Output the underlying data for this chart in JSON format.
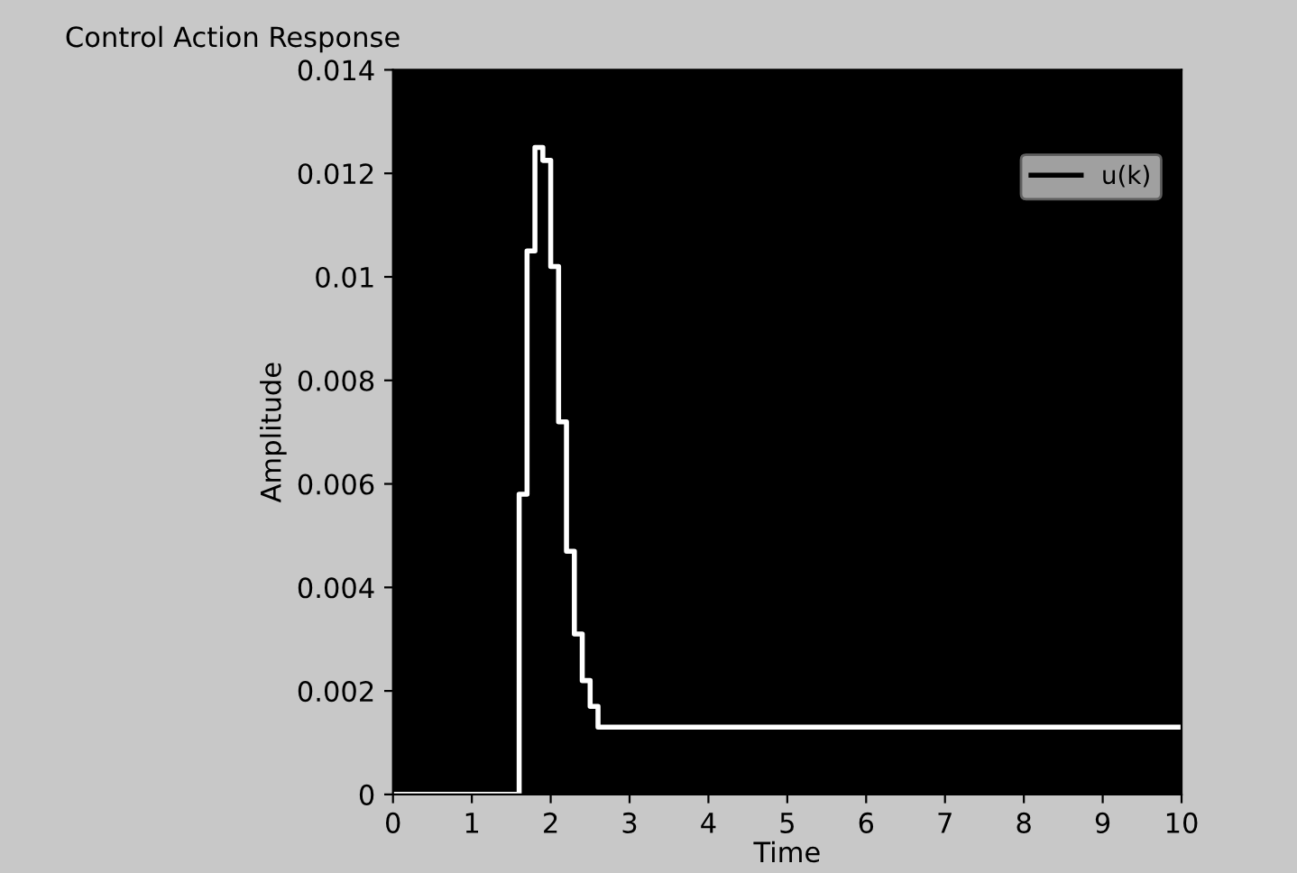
{
  "chart_data": {
    "type": "step",
    "title": "Control Action Response",
    "xlabel": "Time",
    "ylabel": "Amplitude",
    "series": [
      {
        "name": "u(k)",
        "color": "#ffffff",
        "x": [
          0,
          1.6,
          1.7,
          1.8,
          1.9,
          2.0,
          2.1,
          2.2,
          2.3,
          2.4,
          2.5,
          2.6,
          10
        ],
        "values": [
          0,
          0.0058,
          0.0105,
          0.0125,
          0.01225,
          0.0102,
          0.0072,
          0.0047,
          0.0031,
          0.0022,
          0.0017,
          0.0013,
          0.0013
        ]
      }
    ],
    "xlim": [
      0,
      10
    ],
    "xticks": [
      0,
      1,
      2,
      3,
      4,
      5,
      6,
      7,
      8,
      9,
      10
    ],
    "ylim": [
      0,
      0.014
    ],
    "yticks": [
      0,
      0.002,
      0.004,
      0.006,
      0.008,
      0.01,
      0.012,
      0.014
    ],
    "grid": false,
    "legend": "top right",
    "line_style": "solid",
    "marker": "none"
  }
}
